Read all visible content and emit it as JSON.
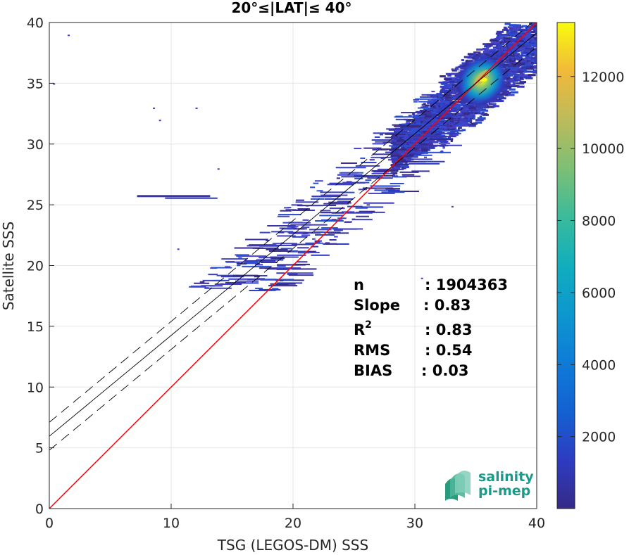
{
  "chart_data": {
    "type": "heatmap",
    "title": "20°≤|LAT|≤ 40°",
    "xlabel": "TSG (LEGOS-DM) SSS",
    "ylabel": "Satellite SSS",
    "xlim": [
      0,
      40
    ],
    "ylim": [
      0,
      40
    ],
    "xticks": [
      "0",
      "10",
      "20",
      "30",
      "40"
    ],
    "yticks": [
      "0",
      "5",
      "10",
      "15",
      "20",
      "25",
      "30",
      "35",
      "40"
    ],
    "grid": true,
    "colorbar": {
      "range": [
        0,
        13500
      ],
      "ticks": [
        "2000",
        "4000",
        "6000",
        "8000",
        "10000",
        "12000"
      ],
      "colormap": "parula"
    },
    "reference_lines": [
      {
        "name": "1:1",
        "color": "#ff0000",
        "x": [
          0,
          40
        ],
        "y": [
          0,
          40
        ]
      },
      {
        "name": "fit",
        "color": "#000000",
        "x": [
          0,
          40
        ],
        "y": [
          5.95,
          39.15
        ]
      },
      {
        "name": "fit+sd",
        "color": "#000000",
        "dash": true,
        "x": [
          0,
          40
        ],
        "y": [
          7.1,
          40.3
        ]
      },
      {
        "name": "fit-sd",
        "color": "#000000",
        "dash": true,
        "x": [
          0,
          40
        ],
        "y": [
          4.8,
          38.0
        ]
      }
    ],
    "density_peak": {
      "x": 35.5,
      "y": 35.2
    },
    "stats": {
      "n_label": "n",
      "n_value": ": 1904363",
      "slope_label": "Slope",
      "slope_value": ": 0.83",
      "r2_label": "R",
      "r2_sup": "2",
      "r2_value": ": 0.83",
      "rms_label": "RMS",
      "rms_value": ": 0.54",
      "bias_label": "BIAS",
      "bias_value": ": 0.03"
    }
  },
  "logo": {
    "line1": "salinity",
    "line2": "pi-mep"
  }
}
